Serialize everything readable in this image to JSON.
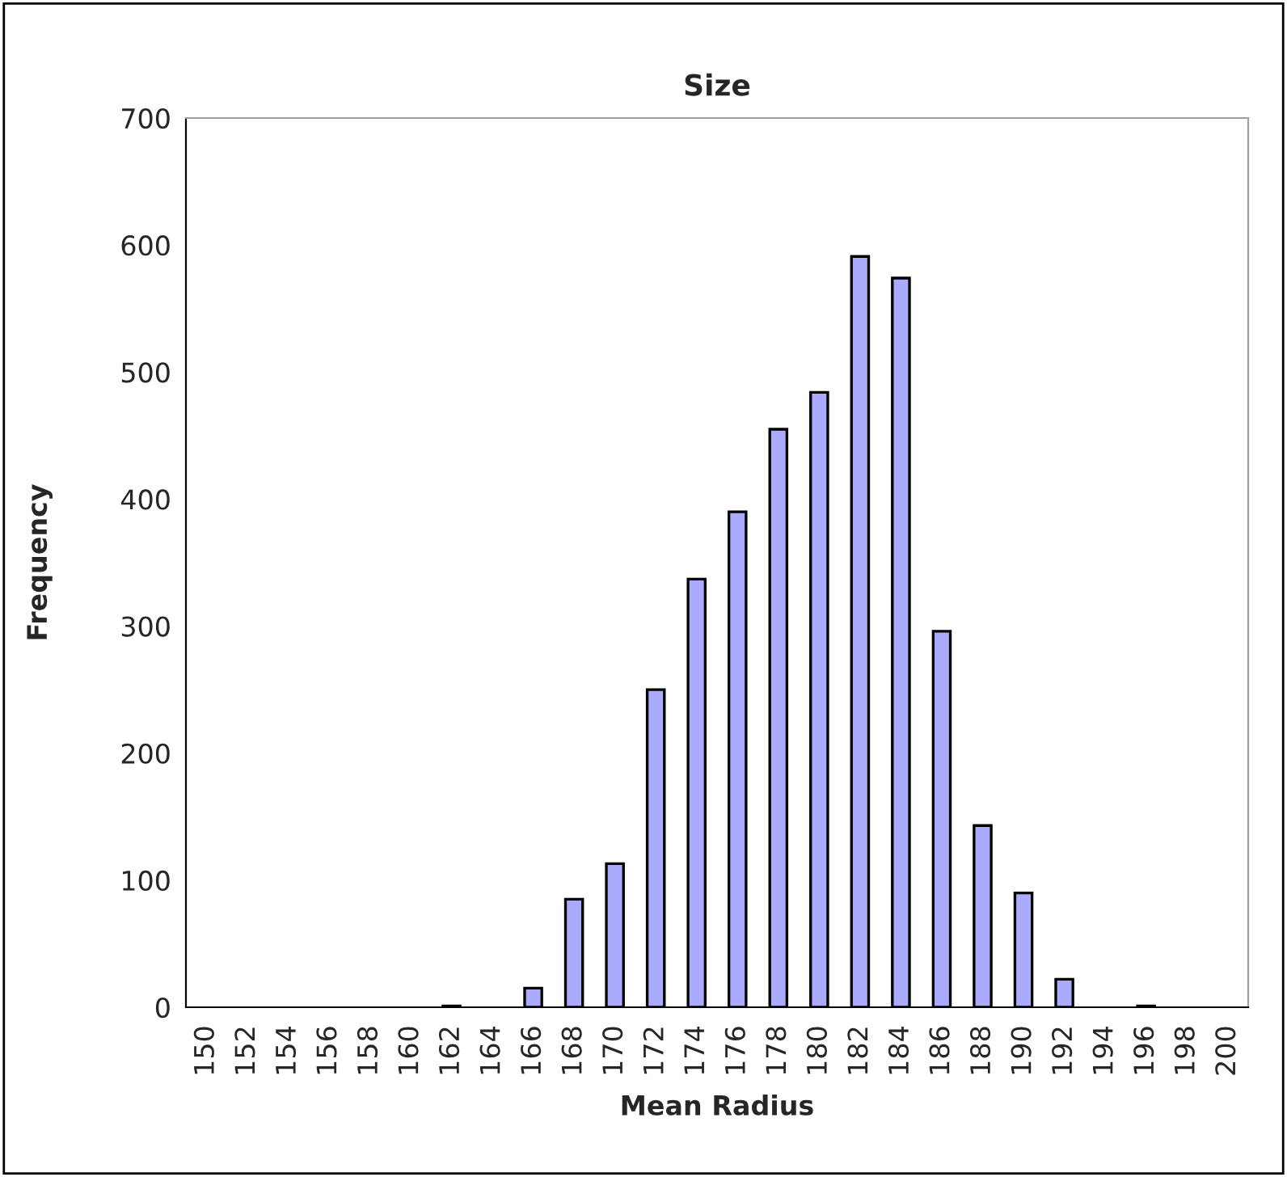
{
  "chart_data": {
    "type": "bar",
    "title": "Size",
    "xlabel": "Mean Radius",
    "ylabel": "Frequency",
    "categories": [
      "150",
      "152",
      "154",
      "156",
      "158",
      "160",
      "162",
      "164",
      "166",
      "168",
      "170",
      "172",
      "174",
      "176",
      "178",
      "180",
      "182",
      "184",
      "186",
      "188",
      "190",
      "192",
      "194",
      "196",
      "198",
      "200"
    ],
    "values": [
      0,
      0,
      0,
      0,
      0,
      0,
      1,
      0,
      15,
      85,
      113,
      250,
      337,
      390,
      455,
      484,
      591,
      574,
      296,
      143,
      90,
      22,
      0,
      1,
      0,
      0
    ],
    "color": "#aaaaff",
    "ylim": [
      0,
      700
    ],
    "yticks": [
      0,
      100,
      200,
      300,
      400,
      500,
      600,
      700
    ],
    "grid": false,
    "legend": false
  }
}
